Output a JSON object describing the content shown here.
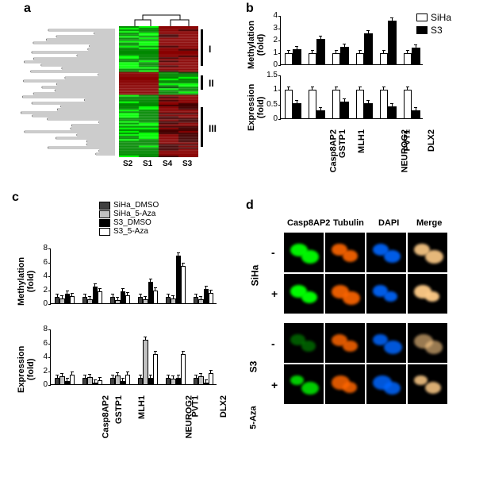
{
  "panel_labels": {
    "a": "a",
    "b": "b",
    "c": "c",
    "d": "d"
  },
  "label_fontsize": 16,
  "panel_a": {
    "sample_labels": [
      "S2",
      "S1",
      "S4",
      "S3"
    ],
    "sample_label_fontsize": 10,
    "cluster_labels": [
      "I",
      "II",
      "III"
    ],
    "cluster_positions": [
      0.22,
      0.45,
      0.75
    ],
    "cluster_bar_heights": [
      0.28,
      0.12,
      0.3
    ],
    "heatmap_colors": [
      "#00ff00",
      "#008800",
      "#004400",
      "#000000",
      "#440000",
      "#880000",
      "#ff0000"
    ],
    "dendro_color": "#000000"
  },
  "panel_b": {
    "genes": [
      "Casp8AP2",
      "GSTP1",
      "MLH1",
      "NEUROG2",
      "PVT1",
      "DLX2"
    ],
    "gene_fontsize": 11,
    "legend": [
      "SiHa",
      "S3"
    ],
    "legend_colors": [
      "#ffffff",
      "#000000"
    ],
    "top": {
      "ylabel": "Methylation\n(fold)",
      "ylabel_fontsize": 11,
      "ylim": [
        0,
        4
      ],
      "yticks": [
        0,
        1,
        2,
        3,
        4
      ],
      "siha": [
        1.0,
        1.0,
        1.0,
        1.0,
        1.0,
        1.0
      ],
      "s3": [
        1.3,
        2.1,
        1.5,
        2.6,
        3.6,
        1.4
      ],
      "siha_err": [
        0.05,
        0.05,
        0.05,
        0.05,
        0.05,
        0.05
      ],
      "s3_err": [
        0.1,
        0.2,
        0.15,
        0.15,
        0.3,
        0.1
      ]
    },
    "bottom": {
      "ylabel": "Expression\n(fold)",
      "ylabel_fontsize": 11,
      "ylim": [
        0,
        1.5
      ],
      "yticks": [
        0,
        0.5,
        1,
        1.5
      ],
      "siha": [
        1.0,
        1.0,
        1.0,
        1.0,
        1.0,
        1.0
      ],
      "s3": [
        0.55,
        0.3,
        0.6,
        0.55,
        0.45,
        0.3
      ],
      "siha_err": [
        0.05,
        0.05,
        0.05,
        0.3,
        0.05,
        0.05
      ],
      "s3_err": [
        0.05,
        0.05,
        0.05,
        0.1,
        0.05,
        0.05
      ]
    },
    "bar_width": 0.35,
    "border_color": "#000000"
  },
  "panel_c": {
    "genes": [
      "Casp8AP2",
      "GSTP1",
      "MLH1",
      "NEUROG2",
      "PVT1",
      "DLX2"
    ],
    "gene_fontsize": 11,
    "legend": [
      "SiHa_DMSO",
      "SiHa_5-Aza",
      "S3_DMSO",
      "S3_5-Aza"
    ],
    "legend_colors": [
      "#404040",
      "#c0c0c0",
      "#000000",
      "#ffffff"
    ],
    "top": {
      "ylabel": "Methylation\n(fold)",
      "ylabel_fontsize": 11,
      "ylim": [
        0,
        8
      ],
      "yticks": [
        0,
        2,
        4,
        6,
        8
      ],
      "siha_dmso": [
        1.0,
        1.0,
        1.0,
        1.0,
        1.0,
        1.0
      ],
      "siha_aza": [
        0.8,
        0.7,
        0.6,
        0.7,
        0.8,
        0.7
      ],
      "s3_dmso": [
        1.5,
        2.5,
        1.8,
        3.2,
        7.0,
        2.2
      ],
      "s3_aza": [
        1.2,
        1.8,
        1.3,
        2.0,
        5.5,
        1.6
      ]
    },
    "bottom": {
      "ylabel": "Expression\n(fold)",
      "ylabel_fontsize": 11,
      "ylim": [
        0,
        8
      ],
      "yticks": [
        0,
        2,
        4,
        6,
        8
      ],
      "siha_dmso": [
        1.0,
        1.0,
        1.0,
        1.0,
        1.0,
        1.0
      ],
      "siha_aza": [
        1.3,
        1.2,
        1.4,
        6.5,
        0.9,
        1.3
      ],
      "s3_dmso": [
        0.6,
        0.3,
        0.6,
        1.0,
        1.0,
        0.4
      ],
      "s3_aza": [
        1.5,
        0.7,
        1.5,
        4.5,
        4.5,
        1.7
      ]
    },
    "bar_width": 0.2,
    "border_color": "#000000"
  },
  "panel_d": {
    "channels": [
      "Casp8AP2",
      "Tubulin",
      "DAPI",
      "Merge"
    ],
    "channel_fontsize": 11,
    "groups": [
      "SiHa",
      "S3"
    ],
    "treatments": [
      "-",
      "+"
    ],
    "treatment_label": "5-Aza",
    "channel_colors": [
      "#00ff00",
      "#ff6600",
      "#0066ff",
      "#ffcc88"
    ],
    "bg_color": "#000000",
    "siha_minus_intensity": [
      0.95,
      0.9,
      0.9,
      0.9
    ],
    "siha_plus_intensity": [
      0.98,
      0.9,
      0.9,
      0.95
    ],
    "s3_minus_intensity": [
      0.35,
      0.85,
      0.85,
      0.6
    ],
    "s3_plus_intensity": [
      0.8,
      0.85,
      0.85,
      0.85
    ]
  }
}
